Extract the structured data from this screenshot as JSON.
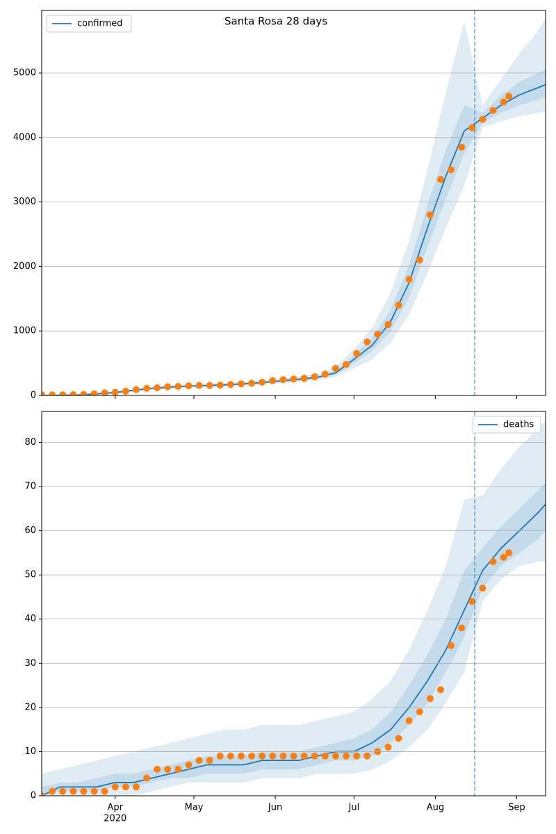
{
  "chart_data": [
    {
      "type": "line",
      "title": "Santa Rosa 28 days",
      "xlim": [
        "2020-03-04",
        "2020-09-12"
      ],
      "ylim": [
        0,
        5970
      ],
      "yticks": [
        0,
        1000,
        2000,
        3000,
        4000,
        5000
      ],
      "grid": true,
      "legend": "upper left",
      "vline": "2020-08-16",
      "x": [
        "2020-03-04",
        "2020-03-11",
        "2020-03-18",
        "2020-03-25",
        "2020-04-01",
        "2020-04-08",
        "2020-04-15",
        "2020-04-22",
        "2020-04-29",
        "2020-05-06",
        "2020-05-13",
        "2020-05-20",
        "2020-05-27",
        "2020-06-03",
        "2020-06-10",
        "2020-06-17",
        "2020-06-24",
        "2020-07-01",
        "2020-07-08",
        "2020-07-15",
        "2020-07-22",
        "2020-07-29",
        "2020-08-05",
        "2020-08-12",
        "2020-08-19",
        "2020-08-26",
        "2020-09-02",
        "2020-09-09",
        "2020-09-12"
      ],
      "bands": [
        {
          "color": "#1f77b4",
          "lower": [
            0,
            0,
            0,
            10,
            25,
            55,
            80,
            100,
            115,
            125,
            135,
            150,
            165,
            185,
            205,
            230,
            290,
            420,
            560,
            820,
            1250,
            1900,
            2600,
            3250,
            4150,
            4250,
            4330,
            4380,
            4400
          ],
          "upper": [
            20,
            20,
            30,
            50,
            70,
            110,
            140,
            160,
            175,
            185,
            200,
            215,
            240,
            265,
            300,
            340,
            430,
            720,
            1050,
            1600,
            2400,
            3500,
            4700,
            5800,
            4500,
            4900,
            5300,
            5650,
            5850
          ]
        },
        {
          "color": "#1f77b4",
          "lower": [
            0,
            1,
            5,
            18,
            38,
            70,
            98,
            120,
            135,
            145,
            155,
            170,
            185,
            210,
            232,
            262,
            325,
            500,
            690,
            1000,
            1520,
            2300,
            3050,
            3750,
            4230,
            4380,
            4500,
            4580,
            4620
          ],
          "upper": [
            5,
            5,
            12,
            32,
            55,
            92,
            125,
            142,
            158,
            168,
            178,
            193,
            218,
            242,
            272,
            305,
            390,
            630,
            900,
            1330,
            2020,
            2950,
            3800,
            4500,
            4380,
            4650,
            4860,
            5000,
            5060
          ]
        }
      ],
      "series": [
        {
          "name": "confirmed",
          "color": "#1f77b4",
          "values": [
            0,
            2,
            8,
            25,
            45,
            80,
            110,
            130,
            145,
            155,
            165,
            180,
            200,
            225,
            250,
            280,
            350,
            560,
            780,
            1150,
            1750,
            2600,
            3400,
            4100,
            4300,
            4500,
            4660,
            4770,
            4820
          ]
        },
        {
          "color": "#ff7f0e",
          "x": [
            "2020-03-04",
            "2020-03-08",
            "2020-03-12",
            "2020-03-16",
            "2020-03-20",
            "2020-03-24",
            "2020-03-28",
            "2020-04-01",
            "2020-04-05",
            "2020-04-09",
            "2020-04-13",
            "2020-04-17",
            "2020-04-21",
            "2020-04-25",
            "2020-04-29",
            "2020-05-03",
            "2020-05-07",
            "2020-05-11",
            "2020-05-15",
            "2020-05-19",
            "2020-05-23",
            "2020-05-27",
            "2020-05-31",
            "2020-06-04",
            "2020-06-08",
            "2020-06-12",
            "2020-06-16",
            "2020-06-20",
            "2020-06-24",
            "2020-06-28",
            "2020-07-02",
            "2020-07-06",
            "2020-07-10",
            "2020-07-14",
            "2020-07-18",
            "2020-07-22",
            "2020-07-26",
            "2020-07-30",
            "2020-08-03",
            "2020-08-07",
            "2020-08-11",
            "2020-08-15",
            "2020-08-19",
            "2020-08-23",
            "2020-08-27",
            "2020-08-29"
          ],
          "values": [
            10,
            10,
            10,
            12,
            15,
            25,
            40,
            50,
            65,
            90,
            110,
            120,
            135,
            140,
            150,
            155,
            155,
            160,
            170,
            180,
            190,
            205,
            230,
            245,
            255,
            265,
            290,
            330,
            420,
            480,
            650,
            830,
            950,
            1100,
            1400,
            1800,
            2100,
            2800,
            3350,
            3500,
            3850,
            4150,
            4280,
            4420,
            4550,
            4640
          ]
        }
      ]
    },
    {
      "type": "line",
      "xlim": [
        "2020-03-04",
        "2020-09-12"
      ],
      "ylim": [
        0,
        87
      ],
      "yticks": [
        0,
        10,
        20,
        30,
        40,
        50,
        60,
        70,
        80
      ],
      "xticks": [
        {
          "value": "2020-04-01",
          "label": "Apr",
          "sublabel": "2020"
        },
        {
          "value": "2020-05-01",
          "label": "May"
        },
        {
          "value": "2020-06-01",
          "label": "Jun"
        },
        {
          "value": "2020-07-01",
          "label": "Jul"
        },
        {
          "value": "2020-08-01",
          "label": "Aug"
        },
        {
          "value": "2020-09-01",
          "label": "Sep"
        }
      ],
      "grid": true,
      "legend": "upper right",
      "vline": "2020-08-16",
      "x": [
        "2020-03-04",
        "2020-03-11",
        "2020-03-18",
        "2020-03-25",
        "2020-04-01",
        "2020-04-08",
        "2020-04-15",
        "2020-04-22",
        "2020-04-29",
        "2020-05-06",
        "2020-05-13",
        "2020-05-20",
        "2020-05-27",
        "2020-06-03",
        "2020-06-10",
        "2020-06-17",
        "2020-06-24",
        "2020-07-01",
        "2020-07-08",
        "2020-07-15",
        "2020-07-22",
        "2020-07-29",
        "2020-08-05",
        "2020-08-12",
        "2020-08-19",
        "2020-08-26",
        "2020-09-02",
        "2020-09-09",
        "2020-09-12"
      ],
      "bands": [
        {
          "color": "#1f77b4",
          "lower": [
            0,
            0,
            0,
            0,
            0,
            0,
            1,
            2,
            3,
            3,
            3,
            3,
            4,
            4,
            4,
            5,
            5,
            5,
            6,
            8,
            11,
            15,
            21,
            28,
            44,
            49,
            52,
            53,
            53
          ],
          "upper": [
            5,
            6,
            7,
            8,
            9,
            10,
            11,
            12,
            13,
            14,
            15,
            15,
            16,
            16,
            16,
            17,
            18,
            19,
            22,
            26,
            33,
            42,
            52,
            67,
            68,
            74,
            79,
            83,
            85
          ]
        },
        {
          "color": "#1f77b4",
          "lower": [
            0,
            1,
            1,
            1,
            2,
            2,
            3,
            4,
            4,
            5,
            5,
            5,
            6,
            6,
            6,
            7,
            8,
            8,
            9,
            12,
            16,
            21,
            28,
            36,
            47,
            52,
            55,
            58,
            60
          ],
          "upper": [
            2,
            3,
            3,
            4,
            5,
            5,
            6,
            7,
            8,
            9,
            9,
            9,
            10,
            10,
            10,
            11,
            12,
            13,
            15,
            19,
            25,
            32,
            40,
            51,
            56,
            61,
            65,
            69,
            71
          ]
        }
      ],
      "series": [
        {
          "name": "deaths",
          "color": "#1f77b4",
          "values": [
            0,
            2,
            2,
            2,
            3,
            3,
            4,
            5,
            6,
            7,
            7,
            7,
            8,
            8,
            8,
            9,
            10,
            10,
            12,
            15,
            20,
            26,
            33,
            42,
            51,
            56,
            60,
            64,
            66
          ]
        },
        {
          "color": "#ff7f0e",
          "x": [
            "2020-03-04",
            "2020-03-08",
            "2020-03-12",
            "2020-03-16",
            "2020-03-20",
            "2020-03-24",
            "2020-03-28",
            "2020-04-01",
            "2020-04-05",
            "2020-04-09",
            "2020-04-13",
            "2020-04-17",
            "2020-04-21",
            "2020-04-25",
            "2020-04-29",
            "2020-05-03",
            "2020-05-07",
            "2020-05-11",
            "2020-05-15",
            "2020-05-19",
            "2020-05-23",
            "2020-05-27",
            "2020-05-31",
            "2020-06-04",
            "2020-06-08",
            "2020-06-12",
            "2020-06-16",
            "2020-06-20",
            "2020-06-24",
            "2020-06-28",
            "2020-07-02",
            "2020-07-06",
            "2020-07-10",
            "2020-07-14",
            "2020-07-18",
            "2020-07-22",
            "2020-07-26",
            "2020-07-30",
            "2020-08-03",
            "2020-08-07",
            "2020-08-11",
            "2020-08-15",
            "2020-08-19",
            "2020-08-23",
            "2020-08-27",
            "2020-08-29"
          ],
          "values": [
            0,
            1,
            1,
            1,
            1,
            1,
            1,
            2,
            2,
            2,
            4,
            6,
            6,
            6,
            7,
            8,
            8,
            9,
            9,
            9,
            9,
            9,
            9,
            9,
            9,
            9,
            9,
            9,
            9,
            9,
            9,
            9,
            10,
            11,
            13,
            17,
            19,
            22,
            24,
            34,
            38,
            44,
            47,
            53,
            54,
            55
          ]
        }
      ]
    }
  ]
}
